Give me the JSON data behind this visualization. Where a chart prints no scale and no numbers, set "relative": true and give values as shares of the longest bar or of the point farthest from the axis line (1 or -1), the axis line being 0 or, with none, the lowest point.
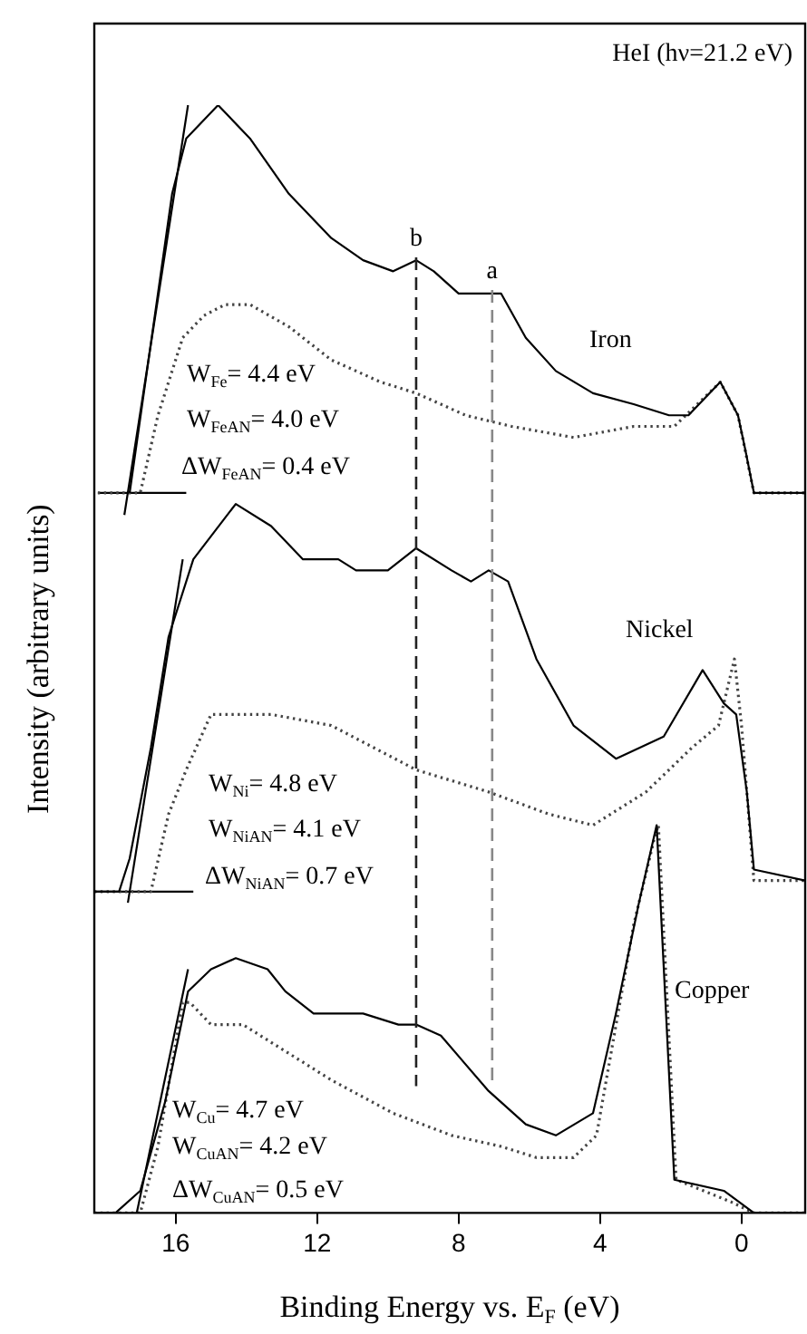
{
  "chart_data": {
    "type": "line",
    "relative": true,
    "xlabel": "Binding Energy vs. E$_{F}$ (eV)",
    "ylabel": "Intensity (arbitrary units)",
    "xlim": [
      18.3,
      -1.8
    ],
    "xticks": [
      16,
      12,
      8,
      4,
      0
    ],
    "grid": false,
    "series": [
      {
        "color": "#000000",
        "line_style": "solid",
        "x": [
          17.3,
          16.1,
          15.7,
          14.8,
          13.9,
          12.8,
          11.6,
          10.7,
          9.85,
          9.2,
          8.7,
          8.0,
          7.65,
          6.8,
          6.1,
          5.25,
          4.2,
          3.05,
          2.05,
          1.5,
          0.6,
          0.1,
          -0.1,
          -0.35,
          -1.8
        ],
        "values": [
          0.65,
          0.92,
          0.97,
          1.0,
          0.97,
          0.92,
          0.88,
          0.86,
          0.85,
          0.86,
          0.85,
          0.83,
          0.83,
          0.83,
          0.79,
          0.76,
          0.74,
          0.73,
          0.72,
          0.72,
          0.75,
          0.72,
          0.69,
          0.65,
          0.65
        ]
      },
      {
        "color": "#444444",
        "line_style": "dotted",
        "x": [
          18.2,
          17.0,
          16.5,
          15.8,
          15.2,
          14.6,
          13.9,
          12.8,
          11.6,
          10.2,
          9.2,
          7.8,
          6.5,
          4.75,
          3.05,
          1.9,
          0.6,
          0.1,
          -0.35,
          -1.8
        ],
        "values": [
          0.65,
          0.65,
          0.72,
          0.79,
          0.81,
          0.82,
          0.82,
          0.8,
          0.77,
          0.75,
          0.74,
          0.72,
          0.71,
          0.7,
          0.71,
          0.71,
          0.75,
          0.72,
          0.65,
          0.65
        ]
      },
      {
        "color": "#000000",
        "line_style": "solid",
        "x": [
          18.3,
          17.6,
          17.3,
          16.7,
          16.2,
          15.5,
          14.3,
          13.3,
          12.4,
          11.4,
          10.9,
          10.0,
          9.2,
          8.2,
          7.65,
          7.15,
          6.6,
          5.8,
          4.75,
          3.55,
          2.2,
          1.1,
          0.5,
          0.15,
          -0.15,
          -0.35,
          -1.8
        ],
        "values": [
          0.29,
          0.29,
          0.32,
          0.42,
          0.52,
          0.59,
          0.64,
          0.62,
          0.59,
          0.59,
          0.58,
          0.58,
          0.6,
          0.58,
          0.57,
          0.58,
          0.57,
          0.5,
          0.44,
          0.41,
          0.43,
          0.49,
          0.46,
          0.45,
          0.38,
          0.31,
          0.3
        ]
      },
      {
        "color": "#444444",
        "line_style": "dotted",
        "x": [
          18.3,
          16.7,
          16.2,
          15.7,
          15.0,
          14.3,
          13.3,
          11.6,
          9.2,
          7.15,
          5.45,
          4.2,
          2.7,
          1.4,
          0.65,
          0.2,
          0.0,
          -0.35,
          -1.8
        ],
        "values": [
          0.29,
          0.29,
          0.36,
          0.4,
          0.45,
          0.45,
          0.45,
          0.44,
          0.4,
          0.38,
          0.36,
          0.35,
          0.38,
          0.42,
          0.44,
          0.5,
          0.44,
          0.3,
          0.3
        ]
      },
      {
        "color": "#000000",
        "line_style": "solid",
        "x": [
          18.3,
          17.7,
          17.0,
          16.3,
          15.65,
          15.0,
          14.3,
          13.4,
          12.9,
          12.1,
          10.7,
          9.7,
          9.2,
          8.5,
          7.15,
          6.1,
          5.25,
          4.2,
          3.55,
          2.9,
          2.4,
          1.9,
          0.5,
          -0.35,
          -1.8
        ],
        "values": [
          0,
          0,
          0.02,
          0.1,
          0.2,
          0.22,
          0.23,
          0.22,
          0.2,
          0.18,
          0.18,
          0.17,
          0.17,
          0.16,
          0.11,
          0.08,
          0.07,
          0.09,
          0.18,
          0.28,
          0.35,
          0.03,
          0.02,
          0,
          0
        ]
      },
      {
        "color": "#444444",
        "line_style": "dotted",
        "x": [
          18.3,
          17.0,
          16.5,
          15.8,
          15.6,
          15.0,
          14.1,
          13.1,
          11.6,
          9.85,
          8.2,
          6.8,
          5.8,
          4.75,
          4.1,
          3.05,
          2.45,
          2.35,
          1.85,
          0.3,
          -0.35,
          -1.8
        ],
        "values": [
          0,
          0,
          0.06,
          0.19,
          0.19,
          0.17,
          0.17,
          0.15,
          0.12,
          0.09,
          0.07,
          0.06,
          0.05,
          0.05,
          0.07,
          0.26,
          0.34,
          0.35,
          0.03,
          0.01,
          0,
          0
        ]
      },
      {
        "color": "#000000",
        "line_style": "solid",
        "x": [
          17.45,
          15.65
        ],
        "values": [
          0.63,
          1.0
        ]
      },
      {
        "color": "#000000",
        "line_style": "solid",
        "x": [
          18.2,
          15.7
        ],
        "values": [
          0.65,
          0.65
        ]
      },
      {
        "color": "#000000",
        "line_style": "solid",
        "x": [
          17.35,
          15.8
        ],
        "values": [
          0.28,
          0.59
        ]
      },
      {
        "color": "#000000",
        "line_style": "solid",
        "x": [
          18.3,
          15.5
        ],
        "values": [
          0.29,
          0.29
        ]
      },
      {
        "color": "#000000",
        "line_style": "solid",
        "x": [
          17.1,
          15.65
        ],
        "values": [
          0,
          0.22
        ]
      }
    ],
    "ref_lines": [
      {
        "axis": "x",
        "value": 9.2,
        "label": "b",
        "color": "#222222",
        "line_style": "dashed"
      },
      {
        "axis": "x",
        "value": 7.05,
        "label": "a",
        "color": "#888888",
        "line_style": "dashed"
      }
    ],
    "annotations": [
      "HeI (hν=21.2 eV)",
      "Iron",
      "Nickel",
      "Copper",
      "W$_{Fe}$= 4.4 eV",
      "W$_{FeAN}$= 4.0 eV",
      "ΔW$_{FeAN}$= 0.4 eV",
      "W$_{Ni}$= 4.8 eV",
      "W$_{NiAN}$= 4.1 eV",
      "ΔW$_{NiAN}$= 0.7 eV",
      "W$_{Cu}$= 4.7 eV",
      "W$_{CuAN}$= 4.2 eV",
      "ΔW$_{CuAN}$= 0.5 eV"
    ]
  }
}
